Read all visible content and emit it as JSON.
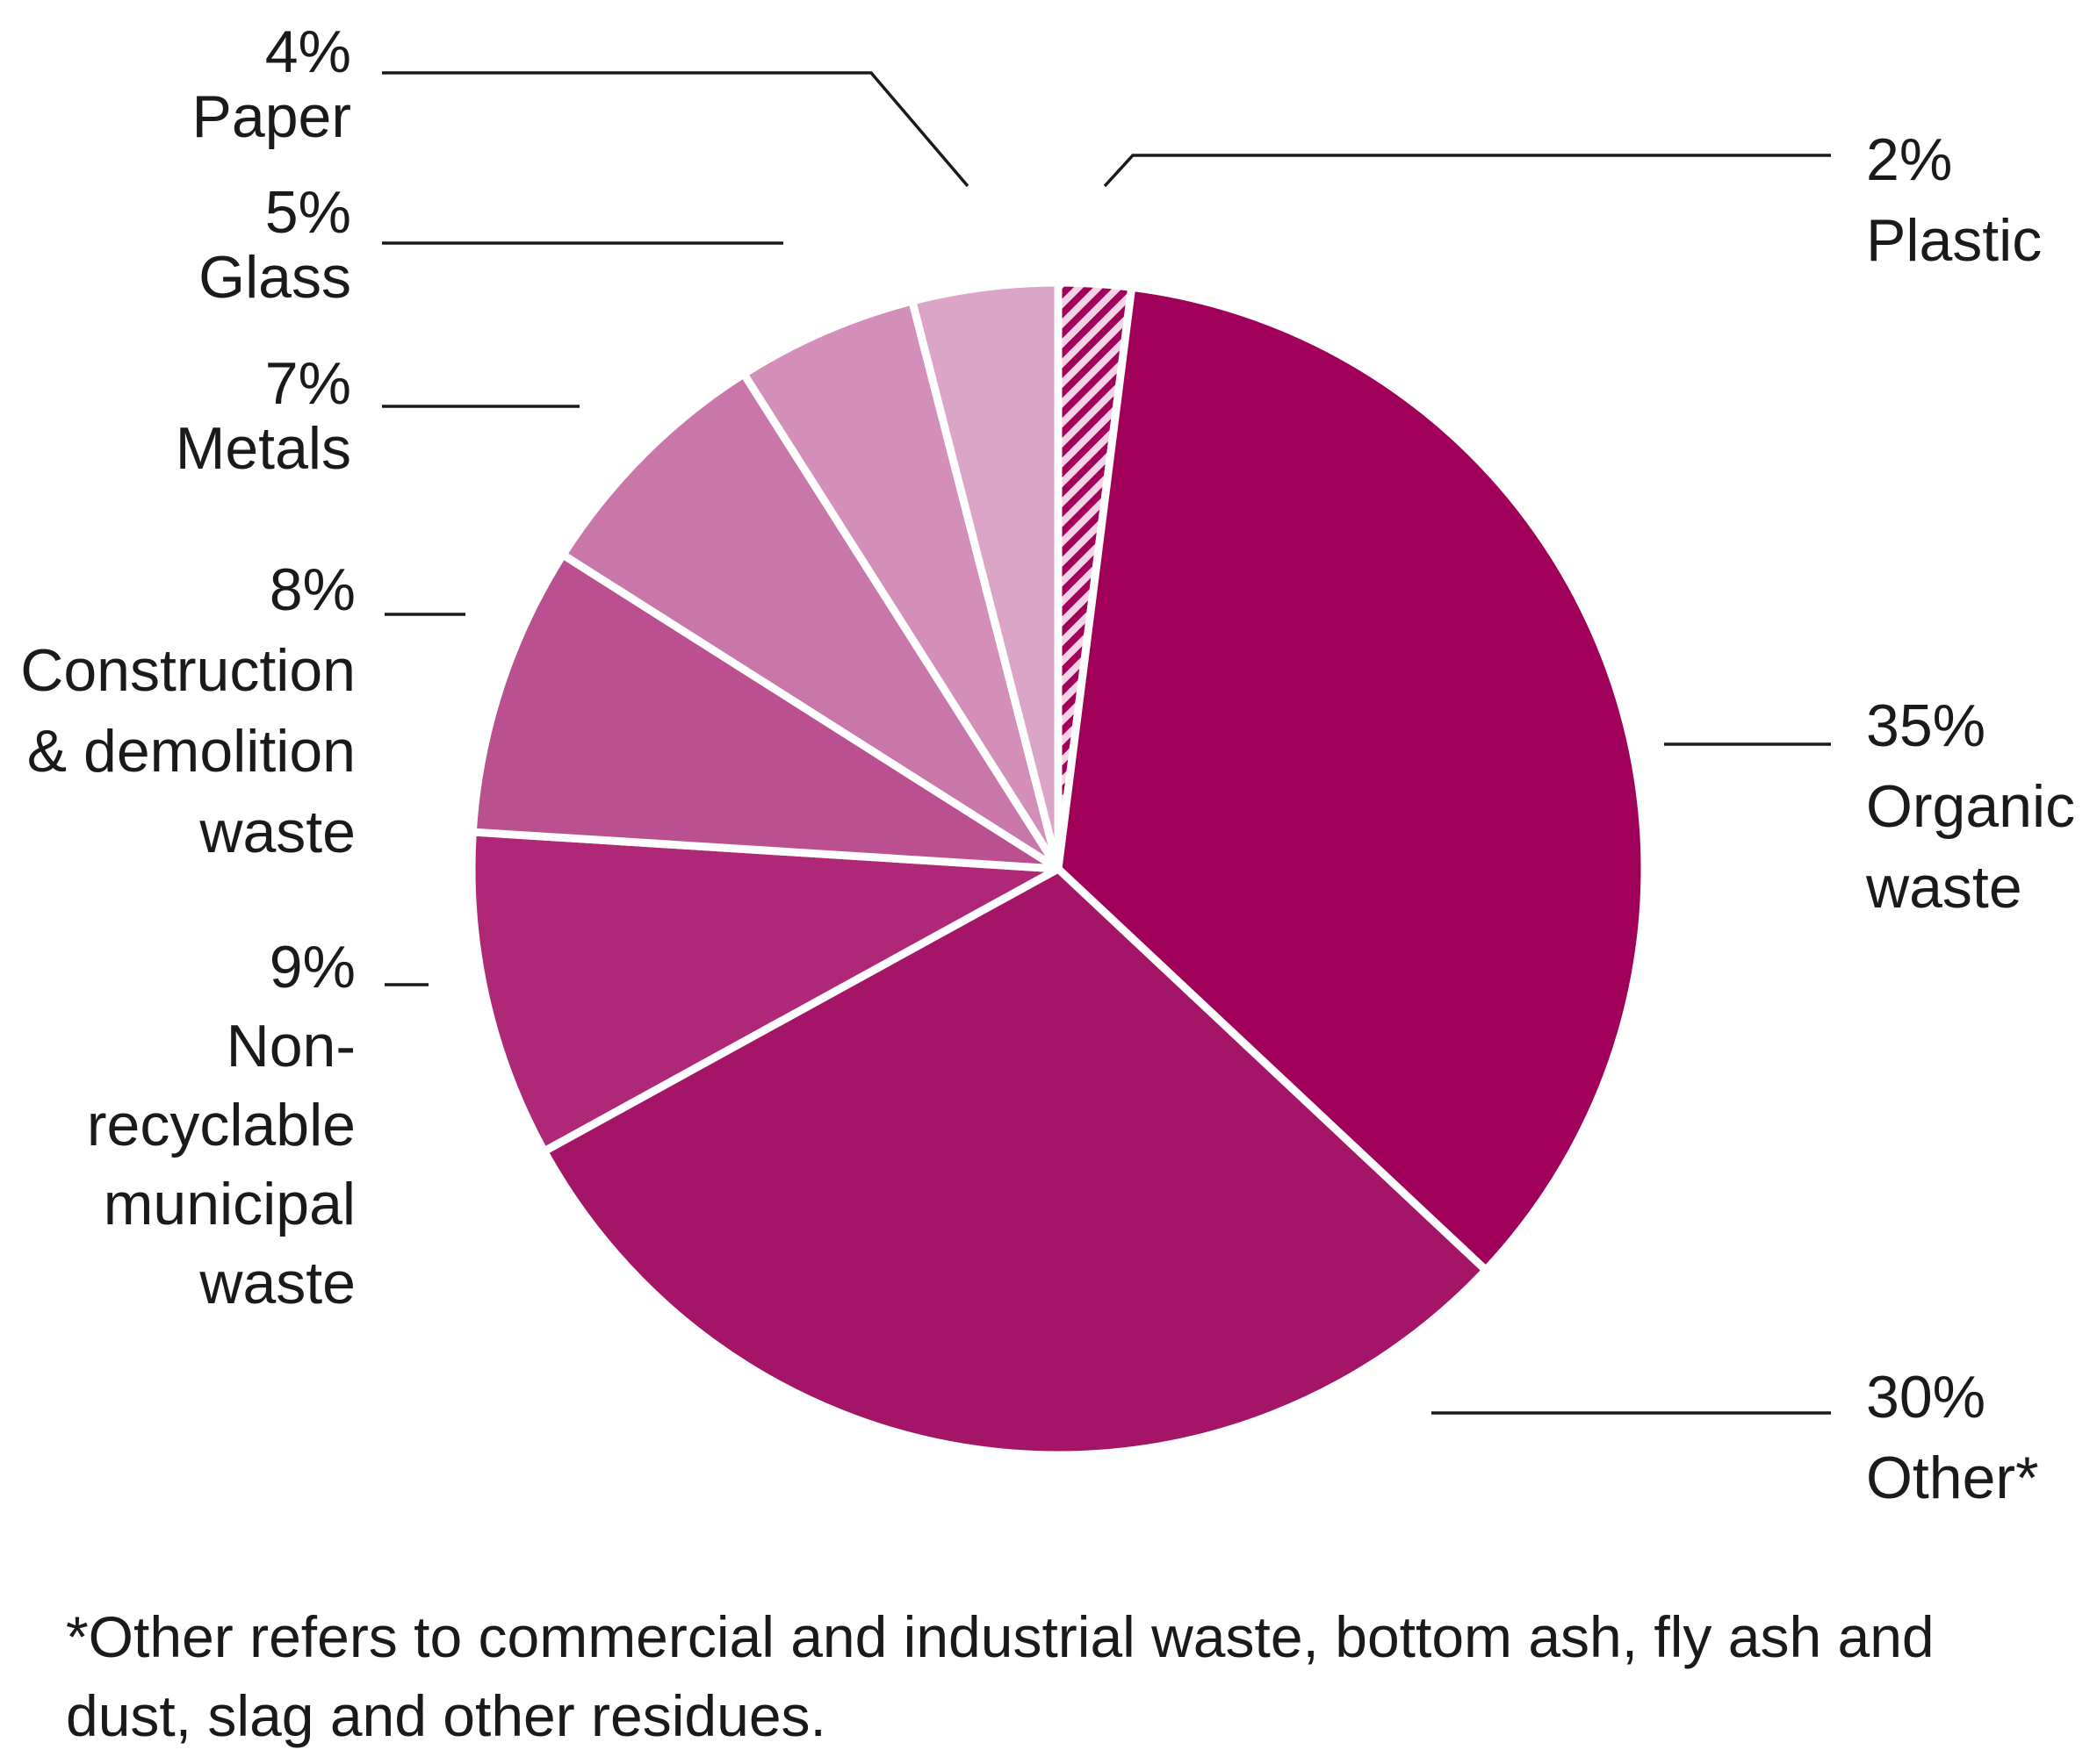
{
  "chart_data": {
    "type": "pie",
    "title": "",
    "slices": [
      {
        "name": "Plastic",
        "value": 2,
        "label_lines": [
          "2%",
          "Plastic"
        ],
        "color": "#a3005a",
        "pattern": "hatched"
      },
      {
        "name": "Organic waste",
        "value": 35,
        "label_lines": [
          "35%",
          "Organic",
          "waste"
        ],
        "color": "#a0005a"
      },
      {
        "name": "Other*",
        "value": 30,
        "label_lines": [
          "30%",
          "Other*"
        ],
        "color": "#a51567"
      },
      {
        "name": "Non-recyclable municipal waste",
        "value": 9,
        "label_lines": [
          "9%",
          "Non-",
          "recyclable",
          "municipal",
          "waste"
        ],
        "color": "#ae2877"
      },
      {
        "name": "Construction & demolition waste",
        "value": 8,
        "label_lines": [
          "8%",
          "Construction",
          "& demolition",
          "waste"
        ],
        "color": "#bb5090"
      },
      {
        "name": "Metals",
        "value": 7,
        "label_lines": [
          "7%",
          "Metals"
        ],
        "color": "#c977aa"
      },
      {
        "name": "Glass",
        "value": 5,
        "label_lines": [
          "5%",
          "Glass"
        ],
        "color": "#d38eba"
      },
      {
        "name": "Paper",
        "value": 4,
        "label_lines": [
          "4%",
          "Paper"
        ],
        "color": "#dba5c8"
      }
    ],
    "start_angle_deg": 0,
    "direction": "clockwise"
  },
  "footnote": "*Other refers to commercial and industrial waste, bottom ash, fly ash and dust, slag and other residues."
}
